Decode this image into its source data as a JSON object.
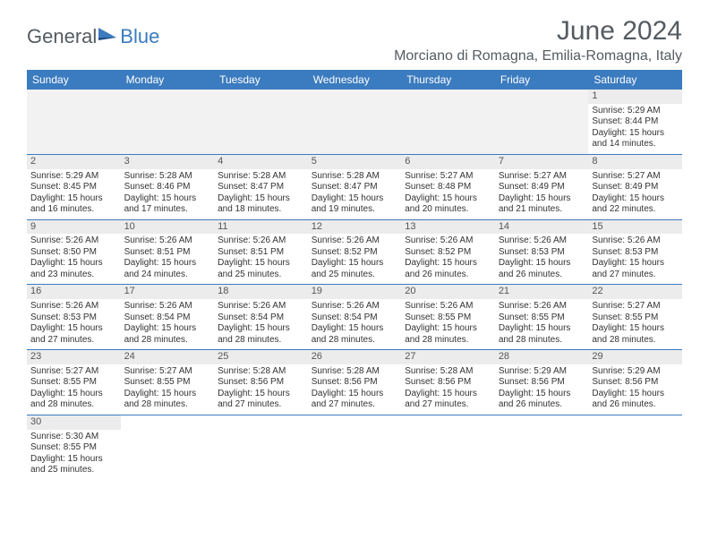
{
  "logo": {
    "part1": "General",
    "part2": "Blue"
  },
  "title": "June 2024",
  "location": "Morciano di Romagna, Emilia-Romagna, Italy",
  "colors": {
    "header_bg": "#3b7bbf",
    "header_text": "#ffffff",
    "daynum_bg": "#ececec",
    "empty_bg": "#f2f2f2",
    "rule": "#3b7bbf",
    "text_gray": "#555b61"
  },
  "weekday_labels": [
    "Sunday",
    "Monday",
    "Tuesday",
    "Wednesday",
    "Thursday",
    "Friday",
    "Saturday"
  ],
  "weeks": [
    [
      null,
      null,
      null,
      null,
      null,
      null,
      {
        "n": "1",
        "sr": "Sunrise: 5:29 AM",
        "ss": "Sunset: 8:44 PM",
        "d1": "Daylight: 15 hours",
        "d2": "and 14 minutes."
      }
    ],
    [
      {
        "n": "2",
        "sr": "Sunrise: 5:29 AM",
        "ss": "Sunset: 8:45 PM",
        "d1": "Daylight: 15 hours",
        "d2": "and 16 minutes."
      },
      {
        "n": "3",
        "sr": "Sunrise: 5:28 AM",
        "ss": "Sunset: 8:46 PM",
        "d1": "Daylight: 15 hours",
        "d2": "and 17 minutes."
      },
      {
        "n": "4",
        "sr": "Sunrise: 5:28 AM",
        "ss": "Sunset: 8:47 PM",
        "d1": "Daylight: 15 hours",
        "d2": "and 18 minutes."
      },
      {
        "n": "5",
        "sr": "Sunrise: 5:28 AM",
        "ss": "Sunset: 8:47 PM",
        "d1": "Daylight: 15 hours",
        "d2": "and 19 minutes."
      },
      {
        "n": "6",
        "sr": "Sunrise: 5:27 AM",
        "ss": "Sunset: 8:48 PM",
        "d1": "Daylight: 15 hours",
        "d2": "and 20 minutes."
      },
      {
        "n": "7",
        "sr": "Sunrise: 5:27 AM",
        "ss": "Sunset: 8:49 PM",
        "d1": "Daylight: 15 hours",
        "d2": "and 21 minutes."
      },
      {
        "n": "8",
        "sr": "Sunrise: 5:27 AM",
        "ss": "Sunset: 8:49 PM",
        "d1": "Daylight: 15 hours",
        "d2": "and 22 minutes."
      }
    ],
    [
      {
        "n": "9",
        "sr": "Sunrise: 5:26 AM",
        "ss": "Sunset: 8:50 PM",
        "d1": "Daylight: 15 hours",
        "d2": "and 23 minutes."
      },
      {
        "n": "10",
        "sr": "Sunrise: 5:26 AM",
        "ss": "Sunset: 8:51 PM",
        "d1": "Daylight: 15 hours",
        "d2": "and 24 minutes."
      },
      {
        "n": "11",
        "sr": "Sunrise: 5:26 AM",
        "ss": "Sunset: 8:51 PM",
        "d1": "Daylight: 15 hours",
        "d2": "and 25 minutes."
      },
      {
        "n": "12",
        "sr": "Sunrise: 5:26 AM",
        "ss": "Sunset: 8:52 PM",
        "d1": "Daylight: 15 hours",
        "d2": "and 25 minutes."
      },
      {
        "n": "13",
        "sr": "Sunrise: 5:26 AM",
        "ss": "Sunset: 8:52 PM",
        "d1": "Daylight: 15 hours",
        "d2": "and 26 minutes."
      },
      {
        "n": "14",
        "sr": "Sunrise: 5:26 AM",
        "ss": "Sunset: 8:53 PM",
        "d1": "Daylight: 15 hours",
        "d2": "and 26 minutes."
      },
      {
        "n": "15",
        "sr": "Sunrise: 5:26 AM",
        "ss": "Sunset: 8:53 PM",
        "d1": "Daylight: 15 hours",
        "d2": "and 27 minutes."
      }
    ],
    [
      {
        "n": "16",
        "sr": "Sunrise: 5:26 AM",
        "ss": "Sunset: 8:53 PM",
        "d1": "Daylight: 15 hours",
        "d2": "and 27 minutes."
      },
      {
        "n": "17",
        "sr": "Sunrise: 5:26 AM",
        "ss": "Sunset: 8:54 PM",
        "d1": "Daylight: 15 hours",
        "d2": "and 28 minutes."
      },
      {
        "n": "18",
        "sr": "Sunrise: 5:26 AM",
        "ss": "Sunset: 8:54 PM",
        "d1": "Daylight: 15 hours",
        "d2": "and 28 minutes."
      },
      {
        "n": "19",
        "sr": "Sunrise: 5:26 AM",
        "ss": "Sunset: 8:54 PM",
        "d1": "Daylight: 15 hours",
        "d2": "and 28 minutes."
      },
      {
        "n": "20",
        "sr": "Sunrise: 5:26 AM",
        "ss": "Sunset: 8:55 PM",
        "d1": "Daylight: 15 hours",
        "d2": "and 28 minutes."
      },
      {
        "n": "21",
        "sr": "Sunrise: 5:26 AM",
        "ss": "Sunset: 8:55 PM",
        "d1": "Daylight: 15 hours",
        "d2": "and 28 minutes."
      },
      {
        "n": "22",
        "sr": "Sunrise: 5:27 AM",
        "ss": "Sunset: 8:55 PM",
        "d1": "Daylight: 15 hours",
        "d2": "and 28 minutes."
      }
    ],
    [
      {
        "n": "23",
        "sr": "Sunrise: 5:27 AM",
        "ss": "Sunset: 8:55 PM",
        "d1": "Daylight: 15 hours",
        "d2": "and 28 minutes."
      },
      {
        "n": "24",
        "sr": "Sunrise: 5:27 AM",
        "ss": "Sunset: 8:55 PM",
        "d1": "Daylight: 15 hours",
        "d2": "and 28 minutes."
      },
      {
        "n": "25",
        "sr": "Sunrise: 5:28 AM",
        "ss": "Sunset: 8:56 PM",
        "d1": "Daylight: 15 hours",
        "d2": "and 27 minutes."
      },
      {
        "n": "26",
        "sr": "Sunrise: 5:28 AM",
        "ss": "Sunset: 8:56 PM",
        "d1": "Daylight: 15 hours",
        "d2": "and 27 minutes."
      },
      {
        "n": "27",
        "sr": "Sunrise: 5:28 AM",
        "ss": "Sunset: 8:56 PM",
        "d1": "Daylight: 15 hours",
        "d2": "and 27 minutes."
      },
      {
        "n": "28",
        "sr": "Sunrise: 5:29 AM",
        "ss": "Sunset: 8:56 PM",
        "d1": "Daylight: 15 hours",
        "d2": "and 26 minutes."
      },
      {
        "n": "29",
        "sr": "Sunrise: 5:29 AM",
        "ss": "Sunset: 8:56 PM",
        "d1": "Daylight: 15 hours",
        "d2": "and 26 minutes."
      }
    ],
    [
      {
        "n": "30",
        "sr": "Sunrise: 5:30 AM",
        "ss": "Sunset: 8:55 PM",
        "d1": "Daylight: 15 hours",
        "d2": "and 25 minutes."
      },
      null,
      null,
      null,
      null,
      null,
      null
    ]
  ]
}
